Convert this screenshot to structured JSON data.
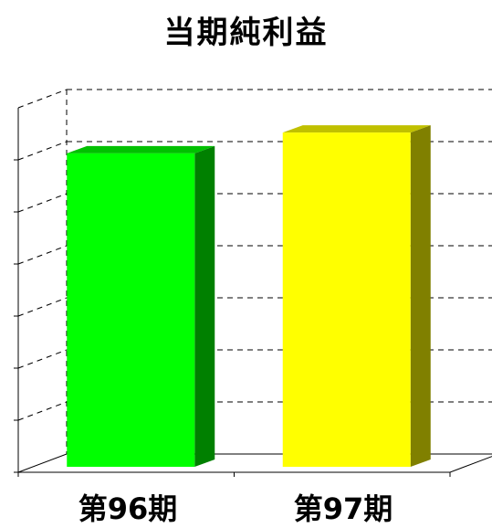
{
  "chart_data": {
    "type": "bar",
    "title": "当期純利益",
    "categories": [
      "第96期",
      "第97期"
    ],
    "values": [
      6.3,
      6.7
    ],
    "ylim": [
      0,
      7
    ],
    "grid": true,
    "bar_colors": [
      {
        "front": "#00ff00",
        "side": "#008000",
        "top": "#00c000"
      },
      {
        "front": "#ffff00",
        "side": "#808000",
        "top": "#c0c000"
      }
    ],
    "grid_color": "#000000",
    "style": "3d"
  }
}
